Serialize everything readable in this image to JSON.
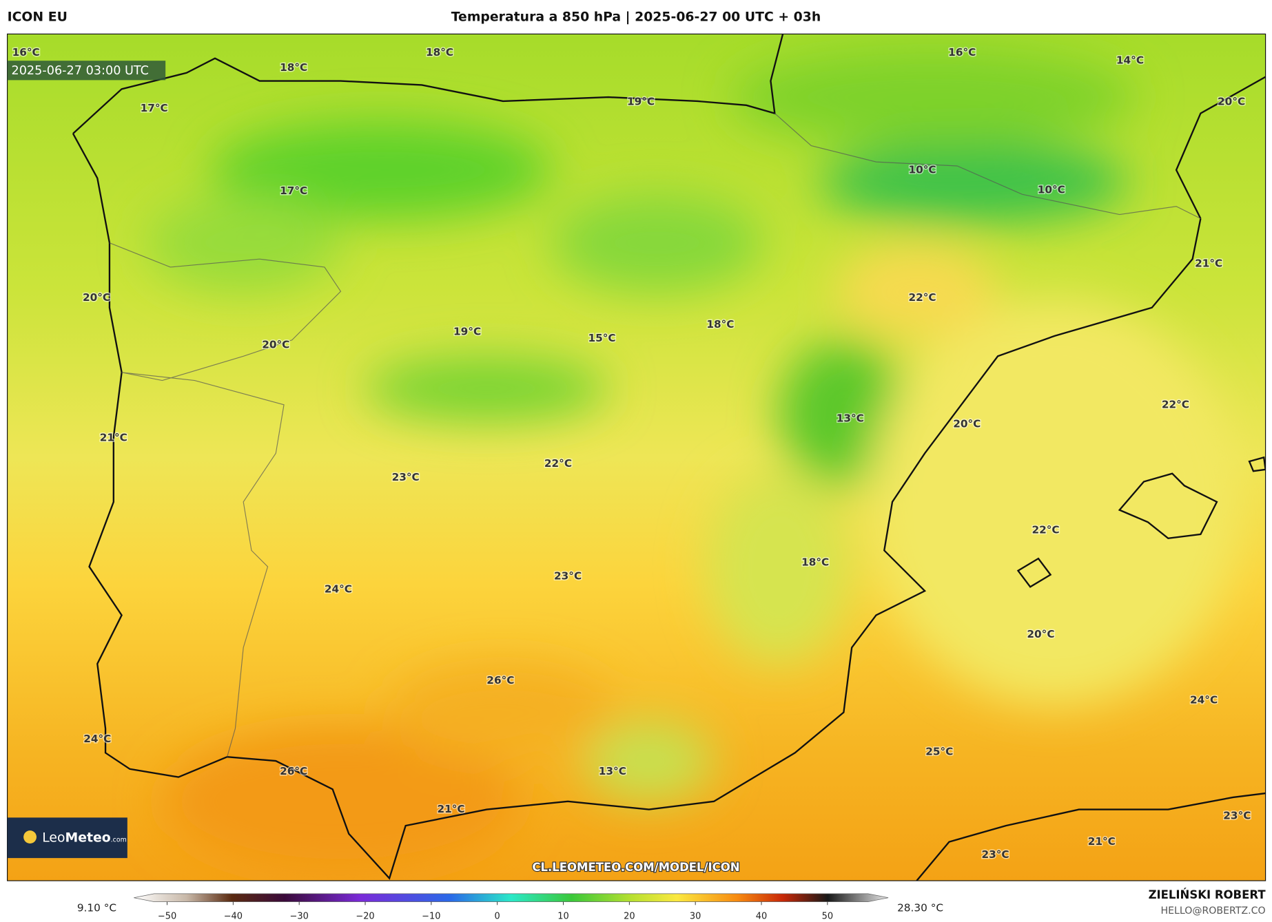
{
  "header": {
    "model": "ICON EU",
    "title": "Temperatura a 850 hPa | 2025-06-27 00 UTC + 03h",
    "valid_time": "2025-06-27 03:00 UTC"
  },
  "logo": {
    "part1": "Leo",
    "part2": "Meteo",
    "part3": ".com"
  },
  "url": "CL.LEOMETEO.COM/MODEL/ICON",
  "author": {
    "name": "ZIELIŃSKI ROBERT",
    "email": "HELLO@ROBERTZ.CO"
  },
  "field_min": "9.10 °C",
  "field_max": "28.30 °C",
  "colorbar": {
    "range": [
      -50,
      50
    ],
    "ticks": [
      {
        "value": -50,
        "label": "−50"
      },
      {
        "value": -40,
        "label": "−40"
      },
      {
        "value": -30,
        "label": "−30"
      },
      {
        "value": -20,
        "label": "−20"
      },
      {
        "value": -10,
        "label": "−10"
      },
      0,
      10,
      20,
      30,
      40,
      50
    ]
  },
  "map_labels": [
    "16°C",
    "18°C",
    "18°C",
    "17°C",
    "19°C",
    "16°C",
    "14°C",
    "20°C",
    "10°C",
    "10°C",
    "17°C",
    "20°C",
    "22°C",
    "21°C",
    "19°C",
    "15°C",
    "18°C",
    "20°C",
    "13°C",
    "20°C",
    "22°C",
    "21°C",
    "22°C",
    "23°C",
    "22°C",
    "18°C",
    "23°C",
    "24°C",
    "20°C",
    "26°C",
    "24°C",
    "24°C",
    "25°C",
    "13°C",
    "26°C",
    "21°C",
    "23°C",
    "21°C",
    "23°C"
  ]
}
